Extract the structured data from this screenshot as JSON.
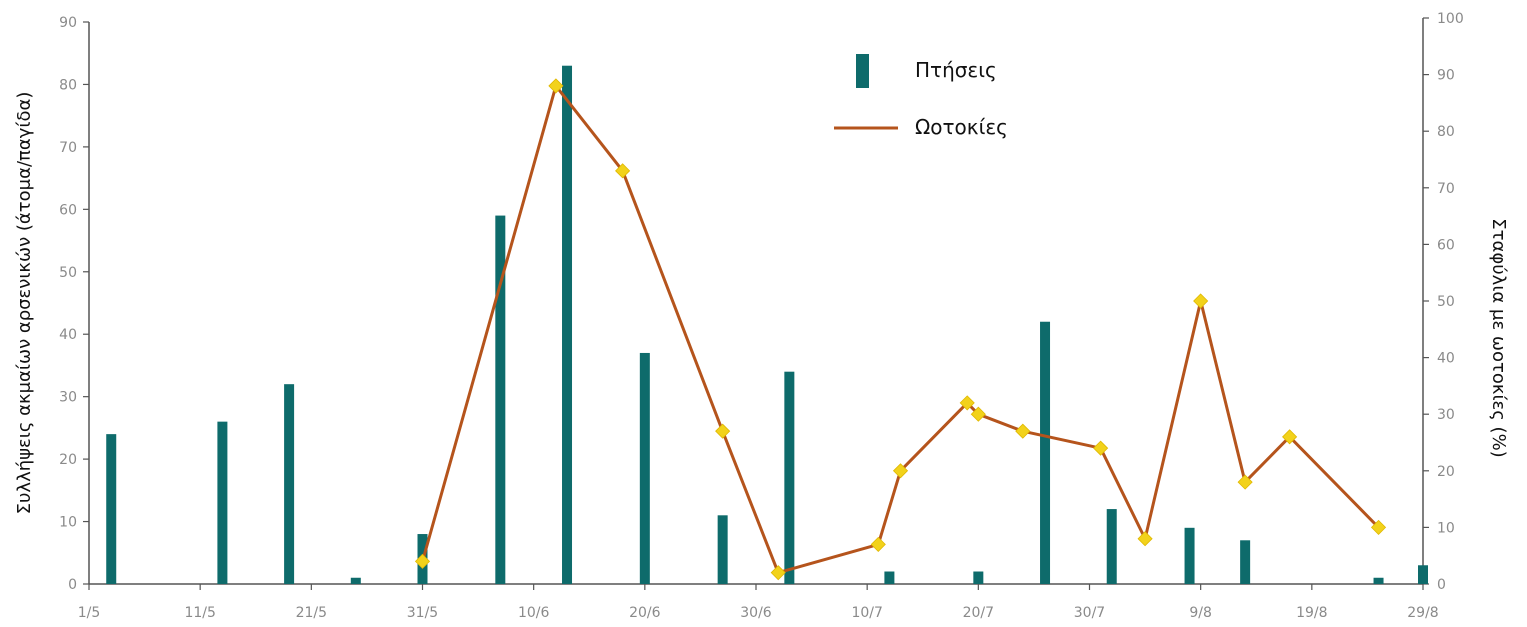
{
  "chart_data": {
    "type": "bar+line",
    "title": "",
    "x_tick_labels": [
      "1/5",
      "11/5",
      "21/5",
      "31/5",
      "10/6",
      "20/6",
      "30/6",
      "10/7",
      "20/7",
      "30/7",
      "9/8",
      "19/8",
      "29/8"
    ],
    "xlim": [
      "1/5",
      "29/8"
    ],
    "ylabel_left": "Συλλήψεις ακμαίων αρσενικών (άτομα/παγίδα)",
    "ylabel_right": "Σταφύλια με ωοτοκίες (%)",
    "ylim_left": [
      0,
      90
    ],
    "ylim_right": [
      0,
      100
    ],
    "yticks_left": [
      "0",
      "10",
      "20",
      "30",
      "40",
      "50",
      "60",
      "70",
      "80",
      "90"
    ],
    "yticks_right": [
      "0",
      "10",
      "20",
      "30",
      "40",
      "50",
      "60",
      "70",
      "80",
      "90",
      "100"
    ],
    "grid": false,
    "legend_position": "top-center",
    "bar_series": {
      "name": "Πτήσεις",
      "axis": "left",
      "color": "#0e6b6b",
      "points": [
        {
          "x": "3/5",
          "y": 24
        },
        {
          "x": "13/5",
          "y": 26
        },
        {
          "x": "19/5",
          "y": 32
        },
        {
          "x": "25/5",
          "y": 1
        },
        {
          "x": "31/5",
          "y": 8
        },
        {
          "x": "7/6",
          "y": 59
        },
        {
          "x": "13/6",
          "y": 83
        },
        {
          "x": "20/6",
          "y": 37
        },
        {
          "x": "27/6",
          "y": 11
        },
        {
          "x": "3/7",
          "y": 34
        },
        {
          "x": "12/7",
          "y": 2
        },
        {
          "x": "20/7",
          "y": 2
        },
        {
          "x": "26/7",
          "y": 42
        },
        {
          "x": "1/8",
          "y": 12
        },
        {
          "x": "8/8",
          "y": 9
        },
        {
          "x": "13/8",
          "y": 7
        },
        {
          "x": "25/8",
          "y": 1
        },
        {
          "x": "29/8",
          "y": 3
        }
      ]
    },
    "line_series": {
      "name": "Ωοτοκίες",
      "axis": "right",
      "color": "#b5541c",
      "marker_color": "#f2d21b",
      "points": [
        {
          "x": "31/5",
          "y": 4
        },
        {
          "x": "12/6",
          "y": 88
        },
        {
          "x": "18/6",
          "y": 73
        },
        {
          "x": "27/6",
          "y": 27
        },
        {
          "x": "2/7",
          "y": 2
        },
        {
          "x": "11/7",
          "y": 7
        },
        {
          "x": "13/7",
          "y": 20
        },
        {
          "x": "19/7",
          "y": 32
        },
        {
          "x": "20/7",
          "y": 30
        },
        {
          "x": "24/7",
          "y": 27
        },
        {
          "x": "31/7",
          "y": 24
        },
        {
          "x": "4/8",
          "y": 8
        },
        {
          "x": "9/8",
          "y": 50
        },
        {
          "x": "13/8",
          "y": 18
        },
        {
          "x": "17/8",
          "y": 26
        },
        {
          "x": "25/8",
          "y": 10
        }
      ]
    }
  }
}
